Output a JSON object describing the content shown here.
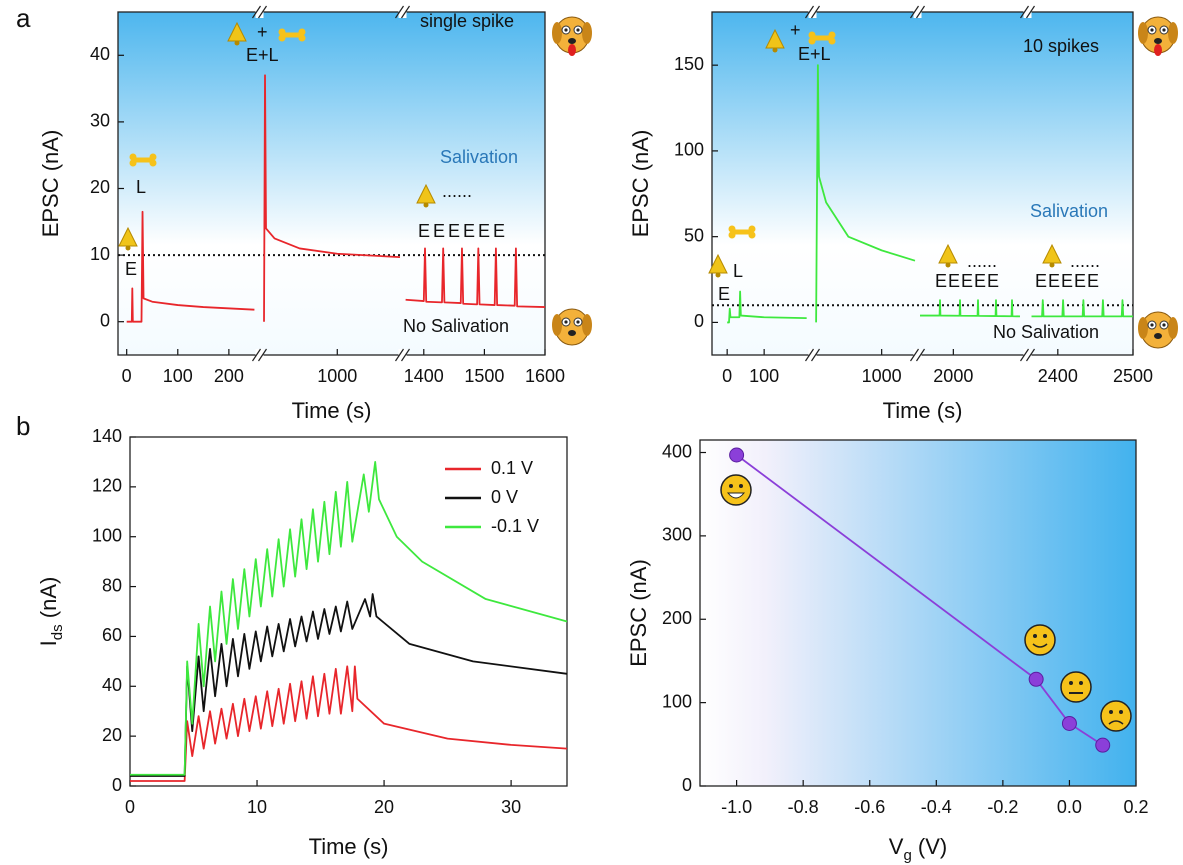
{
  "panel_labels": [
    "a",
    "b"
  ],
  "chart_data": [
    {
      "type": "line",
      "ylabel": "EPSC (nA)",
      "xlabel": "Time (s)",
      "ylim": [
        -5,
        46.5
      ],
      "yticks": [
        0,
        10,
        20,
        30,
        40
      ],
      "x_segments": [
        {
          "xlim": [
            -17,
            257
          ],
          "xticks": [
            0,
            100,
            200
          ]
        },
        {
          "xlim": [
            700,
            1250
          ],
          "xticks": [
            1000
          ]
        },
        {
          "xlim": [
            1369,
            1600
          ],
          "xticks": [
            1400,
            1500,
            1600
          ]
        }
      ],
      "threshold": 10,
      "annotations": [
        "single spike",
        "Salivation",
        "No Salivation",
        "E",
        "L",
        "E+L",
        "+",
        "EEEEEE",
        "......"
      ],
      "series": [
        {
          "color": "#e8262b",
          "x": [
            0,
            10,
            11,
            12,
            29,
            31,
            33,
            50,
            100,
            150,
            250,
            null,
            708,
            712,
            716,
            750,
            850,
            1000,
            1250,
            null,
            1370,
            1400,
            1402,
            1404,
            1430,
            1432,
            1434,
            1461,
            1463,
            1465,
            1488,
            1490,
            1492,
            1517,
            1519,
            1521,
            1550,
            1552,
            1554,
            1600
          ],
          "values": [
            0,
            0,
            5,
            0,
            0,
            16.5,
            3.5,
            3,
            2.5,
            2.2,
            1.8,
            null,
            0,
            37,
            14,
            12.5,
            11,
            10.2,
            9.7,
            null,
            3.3,
            3.1,
            11,
            3,
            2.9,
            11,
            2.9,
            2.8,
            11,
            2.7,
            2.6,
            11,
            2.6,
            2.5,
            11,
            2.5,
            2.4,
            11,
            2.3,
            2.2
          ]
        }
      ]
    },
    {
      "type": "line",
      "ylabel": "EPSC (nA)",
      "xlabel": "Time (s)",
      "ylim": [
        -19,
        181
      ],
      "yticks": [
        0,
        50,
        100,
        150
      ],
      "x_segments": [
        {
          "xlim": [
            -41,
            224
          ],
          "xticks": [
            0,
            100
          ]
        },
        {
          "xlim": [
            700,
            1150
          ],
          "xticks": [
            1000
          ]
        },
        {
          "xlim": [
            1850,
            2300
          ],
          "xticks": [
            2000
          ]
        },
        {
          "xlim": [
            2363,
            2500
          ],
          "xticks": [
            2400,
            2500
          ]
        }
      ],
      "threshold": 10,
      "annotations": [
        "10 spikes",
        "Salivation",
        "No Salivation",
        "E",
        "L",
        "+",
        "E+L",
        "EEEEE",
        "......",
        "EEEEE",
        "......"
      ],
      "series": [
        {
          "color": "#3ee83e",
          "x": [
            0,
            5,
            7,
            9,
            33,
            35,
            37,
            100,
            215,
            null,
            705,
            713,
            718,
            750,
            850,
            1000,
            1150,
            null,
            1850,
            1938,
            1940,
            1942,
            2028,
            2030,
            2032,
            2109,
            2111,
            2113,
            2190,
            2192,
            2194,
            2262,
            2264,
            2266,
            2300,
            null,
            2365,
            2379,
            2380,
            2381,
            2406,
            2407,
            2408,
            2433,
            2434,
            2435,
            2459,
            2460,
            2461,
            2485,
            2486,
            2487,
            2500
          ],
          "values": [
            0,
            0,
            8,
            3,
            3,
            18,
            4,
            3,
            2.5,
            null,
            0,
            150,
            85,
            70,
            50,
            42,
            36,
            null,
            4,
            4,
            13,
            4,
            3.9,
            13,
            3.9,
            3.8,
            13,
            3.8,
            3.7,
            13,
            3.7,
            3.6,
            13,
            3.6,
            3.5,
            null,
            3.5,
            3.5,
            13,
            3.5,
            3.5,
            13,
            3.5,
            3.5,
            13,
            3.5,
            3.5,
            13,
            3.5,
            3.5,
            13,
            3.5,
            3.5
          ]
        }
      ]
    },
    {
      "type": "line",
      "ylabel": [
        "I",
        "ds",
        " (nA)"
      ],
      "xlabel": "Time (s)",
      "xlim": [
        0,
        34.4
      ],
      "xticks": [
        0,
        10,
        20,
        30
      ],
      "ylim": [
        0,
        140
      ],
      "yticks": [
        0,
        20,
        40,
        60,
        80,
        100,
        120,
        140
      ],
      "legend": "upper right",
      "series": [
        {
          "name": "0.1 V",
          "color": "#e8262b",
          "x": [
            0,
            4.3,
            4.5,
            4.9,
            5.4,
            5.8,
            6.3,
            6.7,
            7.2,
            7.6,
            8.1,
            8.5,
            9,
            9.4,
            9.9,
            10.3,
            10.8,
            11.2,
            11.7,
            12.1,
            12.6,
            13,
            13.5,
            13.9,
            14.4,
            14.8,
            15.3,
            15.7,
            16.2,
            16.6,
            17.1,
            17.5,
            17.7,
            17.9,
            20,
            25,
            30,
            34.4
          ],
          "values": [
            2,
            2,
            26,
            12,
            28,
            15,
            30,
            17,
            31,
            19,
            33,
            20,
            35,
            22,
            36,
            23,
            38,
            24,
            39,
            25,
            41,
            26,
            42,
            27,
            44,
            28,
            45,
            29,
            47,
            29,
            48,
            30,
            48,
            35,
            25,
            19,
            16.5,
            15
          ]
        },
        {
          "name": "0 V",
          "color": "#111111",
          "x": [
            0,
            4.3,
            4.5,
            4.9,
            5.4,
            5.8,
            6.3,
            6.7,
            7.2,
            7.6,
            8.1,
            8.5,
            9,
            9.4,
            9.9,
            10.3,
            10.8,
            11.2,
            11.7,
            12.1,
            12.6,
            13,
            13.5,
            13.9,
            14.4,
            14.8,
            15.3,
            15.7,
            16.2,
            16.6,
            17.1,
            17.5,
            18.5,
            18.9,
            19.1,
            19.4,
            22,
            27,
            34.4
          ],
          "values": [
            4,
            4,
            48,
            22,
            52,
            30,
            55,
            36,
            57,
            40,
            59,
            44,
            61,
            47,
            62,
            50,
            64,
            52,
            65,
            54,
            67,
            56,
            68,
            58,
            70,
            59,
            71,
            61,
            72,
            62,
            74,
            63,
            75,
            68,
            77,
            68,
            57,
            50,
            45
          ]
        },
        {
          "name": "-0.1 V",
          "color": "#3ee83e",
          "x": [
            0,
            4.3,
            4.5,
            4.9,
            5.4,
            5.8,
            6.3,
            6.7,
            7.2,
            7.6,
            8.1,
            8.5,
            9,
            9.4,
            9.9,
            10.3,
            10.8,
            11.2,
            11.7,
            12.1,
            12.6,
            13,
            13.5,
            13.9,
            14.4,
            14.8,
            15.3,
            15.7,
            16.2,
            16.6,
            17.1,
            17.5,
            18.4,
            18.8,
            19.3,
            19.6,
            21,
            23,
            28,
            34.4
          ],
          "values": [
            4.5,
            4.5,
            50,
            25,
            65,
            40,
            72,
            50,
            78,
            57,
            83,
            63,
            87,
            68,
            91,
            72,
            95,
            76,
            99,
            80,
            103,
            84,
            107,
            87,
            111,
            90,
            114,
            93,
            118,
            96,
            122,
            98,
            125,
            110,
            130,
            115,
            100,
            90,
            75,
            66
          ]
        }
      ]
    },
    {
      "type": "line",
      "ylabel": "EPSC (nA)",
      "xlabel": [
        "V",
        "g",
        " (V)"
      ],
      "xlim": [
        -1.11,
        0.2
      ],
      "xticks": [
        {
          "value": -1,
          "label": "-1.0"
        },
        -0.8,
        -0.6,
        -0.4,
        -0.2,
        {
          "value": 0,
          "label": "0.0"
        },
        0.2
      ],
      "ylim": [
        0,
        415
      ],
      "yticks": [
        0,
        100,
        200,
        300,
        400
      ],
      "series": [
        {
          "color": "#8b3fd9",
          "marker": "circle",
          "x": [
            -1.0,
            -0.1,
            0,
            0.1
          ],
          "values": [
            397,
            128,
            75,
            49
          ]
        }
      ]
    }
  ]
}
